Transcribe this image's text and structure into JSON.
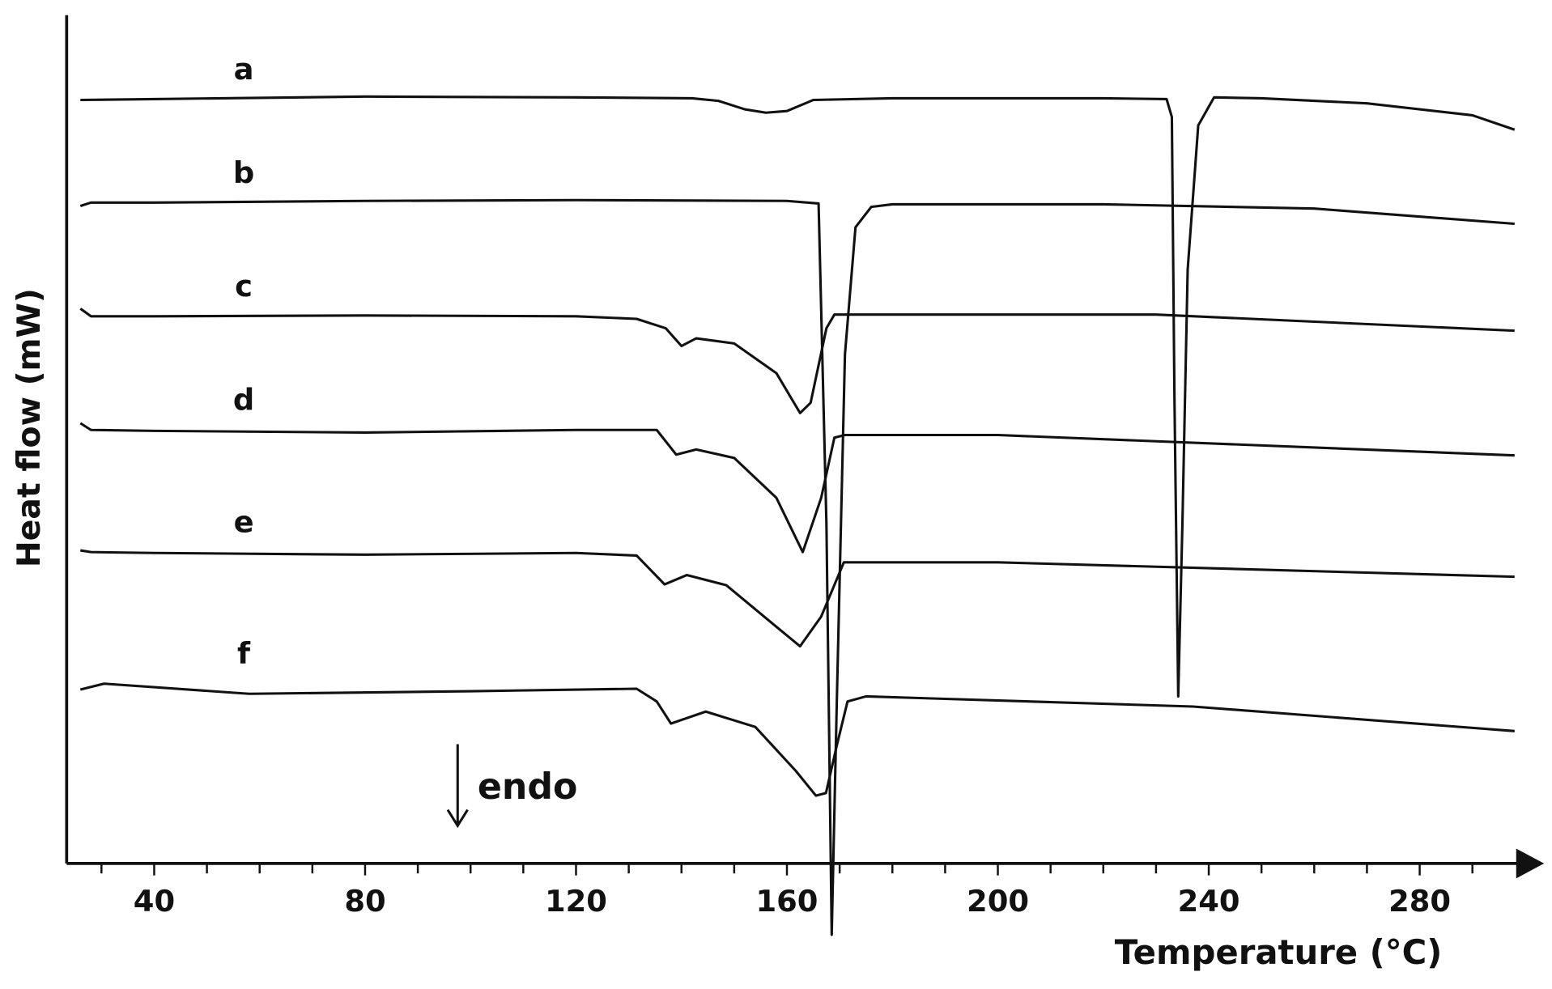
{
  "chart_data": {
    "type": "line",
    "x_label": "Temperature (°C)",
    "y_label": "Heat flow (mW)",
    "annotation": "endo",
    "xlim": [
      23.4,
      300
    ],
    "ylim": [
      0,
      100
    ],
    "xticks": [
      40,
      80,
      120,
      160,
      200,
      240,
      280
    ],
    "xminorticks": [
      30,
      50,
      60,
      70,
      90,
      100,
      110,
      130,
      140,
      150,
      170,
      180,
      190,
      210,
      220,
      230,
      250,
      260,
      270,
      290
    ],
    "series": [
      {
        "name": "a",
        "color": "#111111",
        "x": [
          26,
          40,
          80,
          120,
          142,
          147,
          152,
          156,
          160,
          165,
          180,
          220,
          232,
          233,
          233.5,
          234.2,
          235,
          236,
          238,
          241,
          250,
          270,
          290,
          298
        ],
        "values": [
          90.0,
          90.1,
          90.4,
          90.3,
          90.2,
          89.9,
          88.9,
          88.5,
          88.7,
          90.0,
          90.2,
          90.2,
          90.1,
          88,
          55,
          19.7,
          40,
          70,
          87,
          90.3,
          90.2,
          89.6,
          88.2,
          86.5
        ]
      },
      {
        "name": "b",
        "color": "#111111",
        "x": [
          26,
          28,
          40,
          80,
          120,
          160,
          166,
          167.5,
          168.5,
          169.5,
          171,
          173,
          176,
          180,
          220,
          260,
          298
        ],
        "values": [
          77.5,
          77.9,
          77.9,
          78.1,
          78.2,
          78.1,
          77.8,
          40,
          -8.4,
          20,
          60,
          75,
          77.4,
          77.7,
          77.7,
          77.2,
          75.4
        ]
      },
      {
        "name": "c",
        "color": "#111111",
        "x": [
          26,
          28,
          40,
          80,
          120,
          131.5,
          137,
          140,
          142.8,
          150,
          158,
          162.5,
          164.5,
          167.5,
          169,
          199.4,
          230,
          298
        ],
        "values": [
          65.4,
          64.5,
          64.5,
          64.6,
          64.5,
          64.2,
          63.1,
          61.0,
          61.9,
          61.3,
          57.8,
          53.1,
          54.3,
          63.1,
          64.7,
          64.7,
          64.7,
          62.8
        ]
      },
      {
        "name": "d",
        "color": "#111111",
        "x": [
          26,
          28,
          40,
          80,
          120,
          135.3,
          139,
          142.8,
          150,
          158,
          163,
          166.5,
          169,
          171,
          200,
          298
        ],
        "values": [
          51.9,
          51.1,
          51.0,
          50.8,
          51.1,
          51.1,
          48.2,
          48.8,
          47.8,
          43.1,
          36.7,
          43.1,
          50.2,
          50.5,
          50.5,
          48.1
        ]
      },
      {
        "name": "e",
        "color": "#111111",
        "x": [
          26,
          28,
          40,
          80,
          120,
          131.5,
          136.8,
          141,
          148.5,
          158,
          162.5,
          166.5,
          170.8,
          200,
          298
        ],
        "values": [
          36.9,
          36.7,
          36.6,
          36.4,
          36.6,
          36.3,
          32.9,
          34.0,
          32.8,
          27.9,
          25.6,
          29.1,
          35.5,
          35.5,
          33.8
        ]
      },
      {
        "name": "f",
        "color": "#111111",
        "x": [
          26,
          30.5,
          58,
          100,
          131.5,
          135.3,
          138,
          144.6,
          154,
          161.7,
          165.5,
          167.4,
          169.5,
          171.5,
          175,
          237,
          298
        ],
        "values": [
          20.5,
          21.2,
          20.0,
          20.3,
          20.6,
          19.1,
          16.5,
          17.9,
          16.1,
          10.9,
          8.0,
          8.3,
          14,
          19.1,
          19.7,
          18.5,
          15.6
        ]
      }
    ]
  }
}
